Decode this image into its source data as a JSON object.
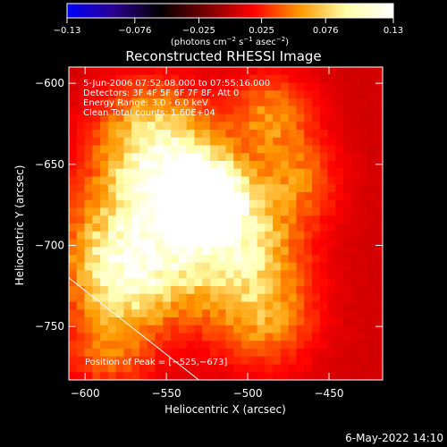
{
  "chart_data": {
    "type": "heatmap",
    "title": "Reconstructed RHESSI Image",
    "xlabel": "Heliocentric X (arcsec)",
    "ylabel": "Heliocentric Y (arcsec)",
    "xlim": [
      -610,
      -417
    ],
    "ylim": [
      -783,
      -590
    ],
    "x_ticks": [
      -600,
      -550,
      -500,
      -450
    ],
    "x_tick_labels": [
      "−600",
      "−550",
      "−500",
      "−450"
    ],
    "y_ticks": [
      -600,
      -650,
      -700,
      -750
    ],
    "y_tick_labels": [
      "−600",
      "−650",
      "−700",
      "−750"
    ],
    "colorbar": {
      "range": [
        -0.13,
        0.13
      ],
      "ticks": [
        -0.13,
        -0.076,
        -0.025,
        0.025,
        0.076,
        0.13
      ],
      "tick_labels": [
        "−0.13",
        "−0.076",
        "−0.025",
        "0.025",
        "0.076",
        "0.13"
      ],
      "unit_parts": [
        "(photons cm",
        "−2",
        " s",
        "−1",
        " asec",
        "−2",
        ")"
      ],
      "stops": [
        "#0000ff",
        "#2a0090",
        "#000000",
        "#7a0000",
        "#ff0000",
        "#ff9900",
        "#ffffaa",
        "#ffffff"
      ]
    },
    "annotations": [
      "5-Jun-2006 07:52:08.000 to 07:55:16.000",
      "Detectors: 3F 4F 5F 6F 7F 8F, Att 0",
      "Energy Range: 3.0 - 6.0 keV",
      "Clean     Total counts: 1.60E+04"
    ],
    "peak_label": "Position of Peak = [−525,−673]",
    "peak": [
      -525,
      -673
    ],
    "limb_line": [
      [
        -610,
        -720
      ],
      [
        -530,
        -783
      ]
    ],
    "sources": [
      {
        "x": -525,
        "y": -673,
        "amp": 0.13,
        "sigma": 14
      },
      {
        "x": -543,
        "y": -660,
        "amp": 0.07,
        "sigma": 22
      },
      {
        "x": -555,
        "y": -690,
        "amp": 0.075,
        "sigma": 35
      },
      {
        "x": -578,
        "y": -718,
        "amp": 0.065,
        "sigma": 22
      },
      {
        "x": -560,
        "y": -630,
        "amp": 0.05,
        "sigma": 22
      },
      {
        "x": -505,
        "y": -700,
        "amp": 0.065,
        "sigma": 25
      },
      {
        "x": -485,
        "y": -620,
        "amp": 0.045,
        "sigma": 18
      },
      {
        "x": -470,
        "y": -660,
        "amp": 0.035,
        "sigma": 18
      },
      {
        "x": -490,
        "y": -745,
        "amp": 0.045,
        "sigma": 22
      },
      {
        "x": -585,
        "y": -765,
        "amp": 0.035,
        "sigma": 18
      }
    ],
    "background": 0.006
  },
  "footer_date": "6-May-2022 14:10"
}
